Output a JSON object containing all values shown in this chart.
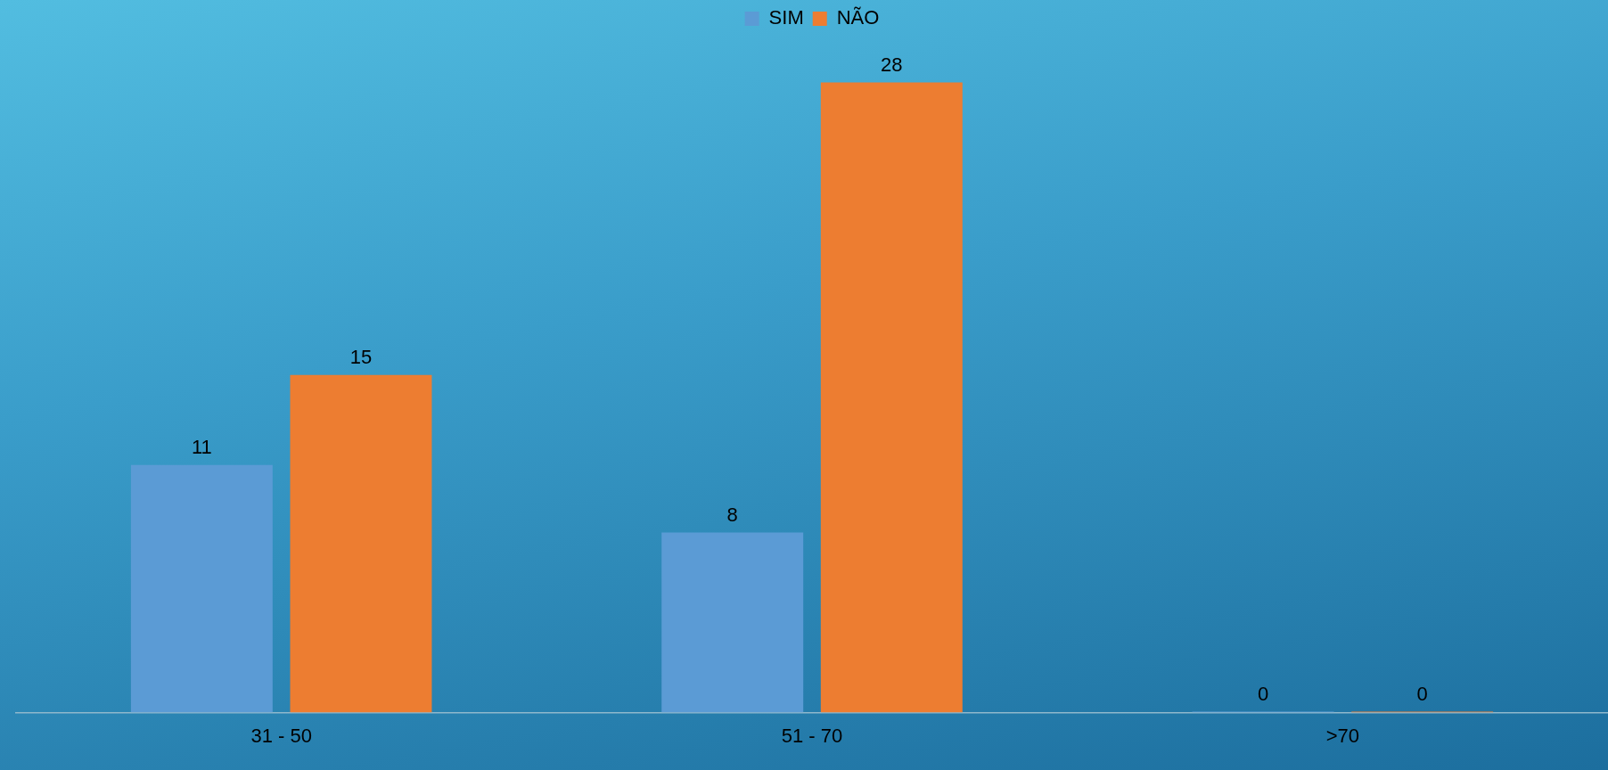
{
  "chart_data": {
    "type": "bar",
    "categories": [
      "31 - 50",
      "51 - 70",
      ">70"
    ],
    "series": [
      {
        "name": "SIM",
        "color": "#5b9bd5",
        "values": [
          11,
          8,
          0
        ]
      },
      {
        "name": "NÃO",
        "color": "#ed7d31",
        "values": [
          15,
          28,
          0
        ]
      }
    ],
    "data_labels": true,
    "grid": false,
    "legend": "top"
  }
}
